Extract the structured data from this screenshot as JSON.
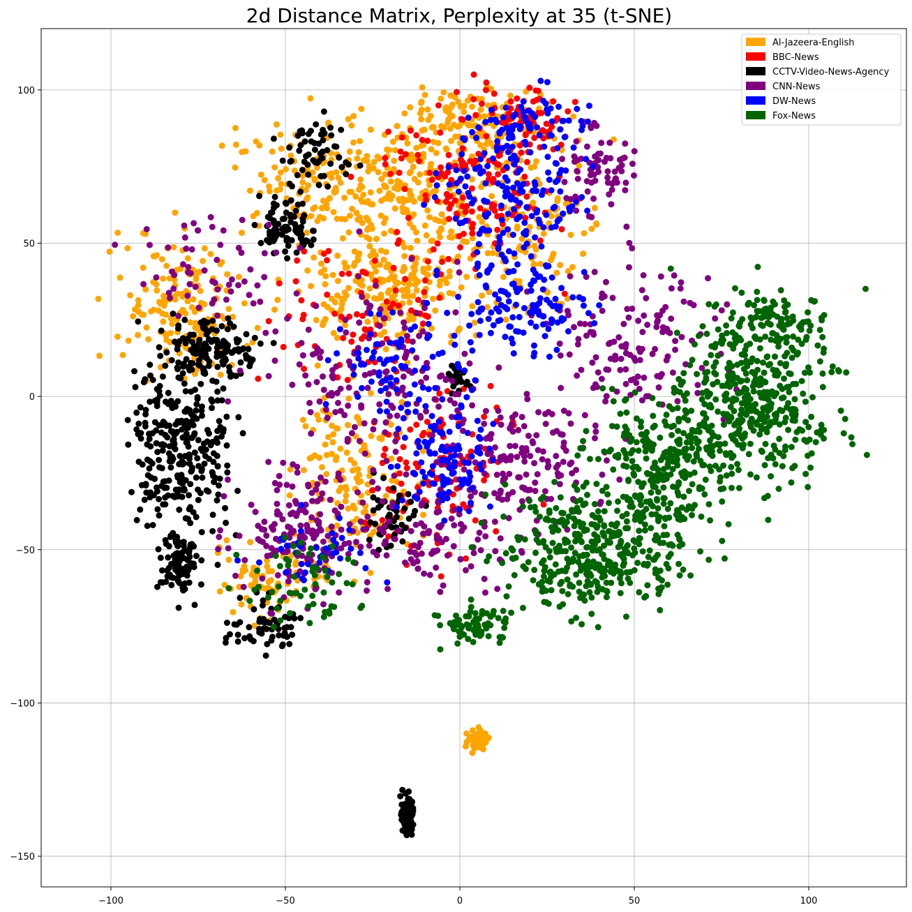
{
  "chart_data": {
    "type": "scatter",
    "title": "2d Distance Matrix, Perplexity at 35 (t-SNE)",
    "xlabel": "",
    "ylabel": "",
    "xlim": [
      -120,
      128
    ],
    "ylim": [
      -160,
      120
    ],
    "xticks": [
      -100,
      -50,
      0,
      50,
      100
    ],
    "yticks": [
      100,
      50,
      0,
      -50,
      -100,
      -150
    ],
    "xtick_labels": [
      "−100",
      "−50",
      "0",
      "50",
      "100"
    ],
    "ytick_labels": [
      "100",
      "50",
      "0",
      "−50",
      "−100",
      "−150"
    ],
    "grid": true,
    "legend_position": "top-right",
    "marker_shape": "circle",
    "series": [
      {
        "name": "Al-Jazeera-English",
        "color": "#FFA500",
        "regions": [
          {
            "center": [
              -25,
              70
            ],
            "spread": [
              40,
              20
            ],
            "count": 320
          },
          {
            "center": [
              -80,
              30
            ],
            "spread": [
              18,
              22
            ],
            "count": 170
          },
          {
            "center": [
              -20,
              35
            ],
            "spread": [
              25,
              18
            ],
            "count": 220
          },
          {
            "center": [
              -30,
              -25
            ],
            "spread": [
              18,
              25
            ],
            "count": 150
          },
          {
            "center": [
              15,
              55
            ],
            "spread": [
              25,
              30
            ],
            "count": 160
          },
          {
            "center": [
              -55,
              -60
            ],
            "spread": [
              15,
              12
            ],
            "count": 80
          },
          {
            "center": [
              5,
              90
            ],
            "spread": [
              20,
              10
            ],
            "count": 120
          },
          {
            "center": [
              5,
              -112
            ],
            "spread": [
              3,
              3
            ],
            "count": 60
          }
        ]
      },
      {
        "name": "BBC-News",
        "color": "#FF0000",
        "regions": [
          {
            "center": [
              5,
              70
            ],
            "spread": [
              25,
              25
            ],
            "count": 160
          },
          {
            "center": [
              -5,
              -25
            ],
            "spread": [
              20,
              25
            ],
            "count": 110
          },
          {
            "center": [
              -25,
              30
            ],
            "spread": [
              25,
              25
            ],
            "count": 80
          },
          {
            "center": [
              20,
              90
            ],
            "spread": [
              15,
              10
            ],
            "count": 60
          }
        ]
      },
      {
        "name": "CCTV-Video-News-Agency",
        "color": "#000000",
        "regions": [
          {
            "center": [
              -80,
              -15
            ],
            "spread": [
              15,
              30
            ],
            "count": 300
          },
          {
            "center": [
              -70,
              15
            ],
            "spread": [
              12,
              10
            ],
            "count": 130
          },
          {
            "center": [
              -50,
              55
            ],
            "spread": [
              8,
              10
            ],
            "count": 90
          },
          {
            "center": [
              -40,
              80
            ],
            "spread": [
              10,
              10
            ],
            "count": 60
          },
          {
            "center": [
              -80,
              -55
            ],
            "spread": [
              6,
              10
            ],
            "count": 90
          },
          {
            "center": [
              -55,
              -75
            ],
            "spread": [
              10,
              8
            ],
            "count": 60
          },
          {
            "center": [
              -20,
              -40
            ],
            "spread": [
              8,
              12
            ],
            "count": 50
          },
          {
            "center": [
              -1,
              5
            ],
            "spread": [
              3,
              4
            ],
            "count": 25
          },
          {
            "center": [
              -15,
              -137
            ],
            "spread": [
              2,
              6
            ],
            "count": 90
          }
        ]
      },
      {
        "name": "CNN-News",
        "color": "#800080",
        "regions": [
          {
            "center": [
              20,
              -20
            ],
            "spread": [
              25,
              20
            ],
            "count": 160
          },
          {
            "center": [
              -45,
              -45
            ],
            "spread": [
              20,
              20
            ],
            "count": 180
          },
          {
            "center": [
              50,
              20
            ],
            "spread": [
              25,
              25
            ],
            "count": 140
          },
          {
            "center": [
              -25,
              10
            ],
            "spread": [
              30,
              30
            ],
            "count": 170
          },
          {
            "center": [
              -5,
              -45
            ],
            "spread": [
              25,
              15
            ],
            "count": 100
          },
          {
            "center": [
              40,
              75
            ],
            "spread": [
              10,
              15
            ],
            "count": 70
          },
          {
            "center": [
              -70,
              40
            ],
            "spread": [
              20,
              20
            ],
            "count": 60
          }
        ]
      },
      {
        "name": "DW-News",
        "color": "#0000FF",
        "regions": [
          {
            "center": [
              15,
              65
            ],
            "spread": [
              20,
              25
            ],
            "count": 170
          },
          {
            "center": [
              15,
              30
            ],
            "spread": [
              20,
              15
            ],
            "count": 120
          },
          {
            "center": [
              -5,
              -20
            ],
            "spread": [
              15,
              20
            ],
            "count": 110
          },
          {
            "center": [
              -20,
              10
            ],
            "spread": [
              20,
              20
            ],
            "count": 80
          },
          {
            "center": [
              20,
              90
            ],
            "spread": [
              15,
              8
            ],
            "count": 60
          },
          {
            "center": [
              -40,
              -50
            ],
            "spread": [
              15,
              10
            ],
            "count": 40
          }
        ]
      },
      {
        "name": "Fox-News",
        "color": "#006400",
        "regions": [
          {
            "center": [
              85,
              0
            ],
            "spread": [
              22,
              28
            ],
            "count": 420
          },
          {
            "center": [
              40,
              -50
            ],
            "spread": [
              25,
              20
            ],
            "count": 420
          },
          {
            "center": [
              60,
              -20
            ],
            "spread": [
              20,
              20
            ],
            "count": 260
          },
          {
            "center": [
              5,
              -75
            ],
            "spread": [
              10,
              6
            ],
            "count": 70
          },
          {
            "center": [
              -45,
              -60
            ],
            "spread": [
              15,
              15
            ],
            "count": 60
          },
          {
            "center": [
              90,
              25
            ],
            "spread": [
              15,
              10
            ],
            "count": 80
          }
        ]
      }
    ]
  }
}
